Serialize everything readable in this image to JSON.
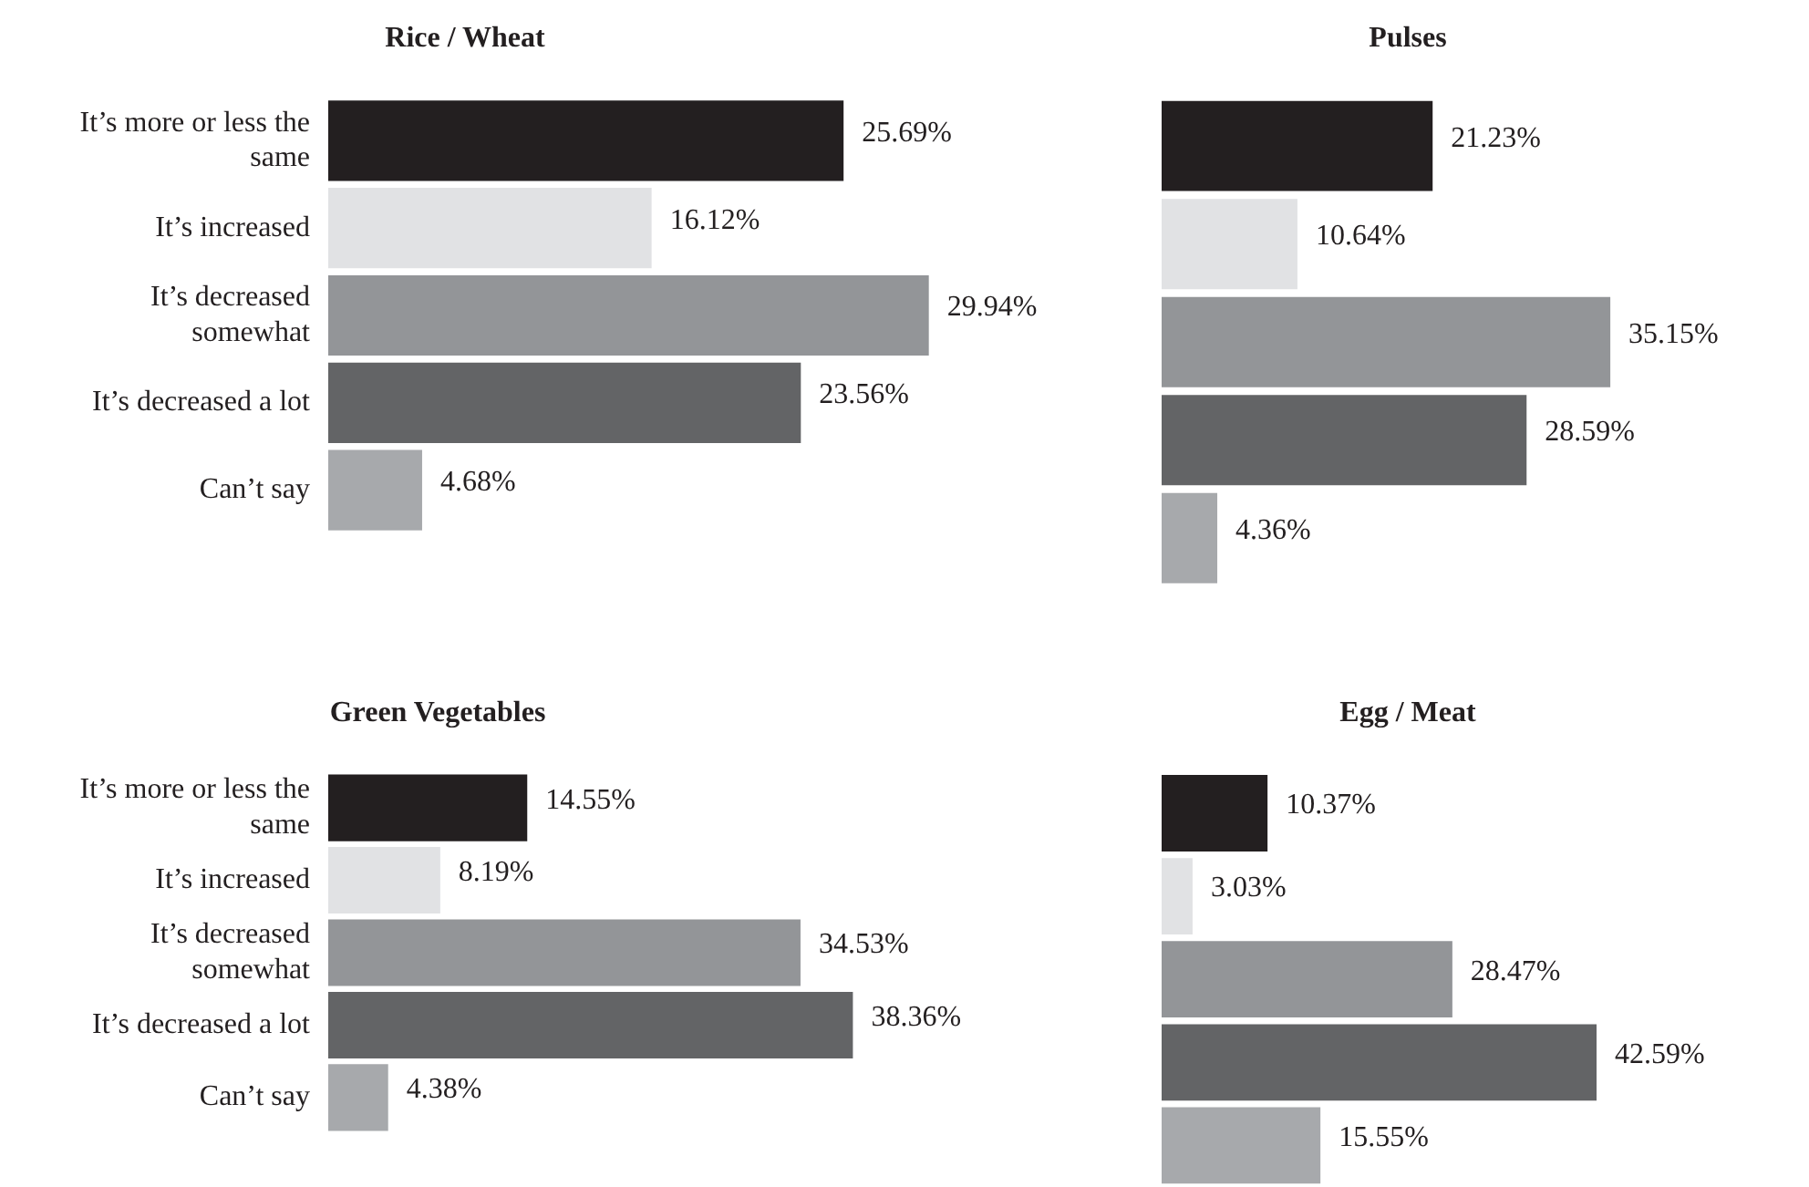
{
  "chart_data": [
    {
      "type": "bar",
      "orientation": "horizontal",
      "title": "Rice / Wheat",
      "categories": [
        "It’s more or less the same",
        "It’s increased",
        "It’s decreased somewhat",
        "It’s decreased a lot",
        "Can’t say"
      ],
      "values": [
        25.69,
        16.12,
        29.94,
        23.56,
        4.68
      ],
      "value_labels": [
        "25.69%",
        "16.12%",
        "29.94%",
        "23.56%",
        "4.68%"
      ],
      "colors": [
        "#231f20",
        "#e1e2e4",
        "#939598",
        "#636466",
        "#a7a9ac"
      ],
      "tick_labels": "y",
      "grid": false,
      "legend": false
    },
    {
      "type": "bar",
      "orientation": "horizontal",
      "title": "Pulses",
      "categories": [
        null,
        null,
        null,
        null,
        null
      ],
      "values": [
        21.23,
        10.64,
        35.15,
        28.59,
        4.36
      ],
      "value_labels": [
        "21.23%",
        "10.64%",
        "35.15%",
        "28.59%",
        "4.36%"
      ],
      "colors": [
        "#231f20",
        "#e1e2e4",
        "#939598",
        "#636466",
        "#a7a9ac"
      ],
      "tick_labels": false,
      "grid": false,
      "legend": false
    },
    {
      "type": "bar",
      "orientation": "horizontal",
      "title": "Green Vegetables",
      "categories": [
        "It’s more or less the same",
        "It’s increased",
        "It’s decreased somewhat",
        "It’s decreased a lot",
        "Can’t say"
      ],
      "values": [
        14.55,
        8.19,
        34.53,
        38.36,
        4.38
      ],
      "value_labels": [
        "14.55%",
        "8.19%",
        "34.53%",
        "38.36%",
        "4.38%"
      ],
      "colors": [
        "#231f20",
        "#e1e2e4",
        "#939598",
        "#636466",
        "#a7a9ac"
      ],
      "tick_labels": "y",
      "grid": false,
      "legend": false
    },
    {
      "type": "bar",
      "orientation": "horizontal",
      "title": "Egg / Meat",
      "categories": [
        null,
        null,
        null,
        null,
        null
      ],
      "values": [
        10.37,
        3.03,
        28.47,
        42.59,
        15.55
      ],
      "value_labels": [
        "10.37%",
        "3.03%",
        "28.47%",
        "42.59%",
        "15.55%"
      ],
      "colors": [
        "#231f20",
        "#e1e2e4",
        "#939598",
        "#636466",
        "#a7a9ac"
      ],
      "tick_labels": false,
      "grid": false,
      "legend": false
    }
  ]
}
